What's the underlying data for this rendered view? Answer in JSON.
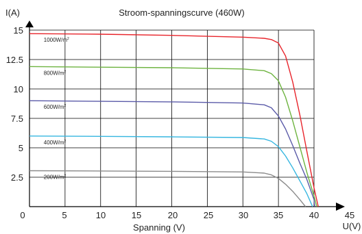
{
  "chart_data": {
    "type": "line",
    "title": "Stroom-spanningscurve (460W)",
    "xlabel": "Spanning (V)",
    "xunit": "U(V)",
    "yunit": "I(A)",
    "xlim": [
      0,
      45
    ],
    "ylim": [
      0,
      15
    ],
    "x_ticks": [
      "0",
      "5",
      "10",
      "15",
      "20",
      "25",
      "30",
      "35",
      "40",
      "45"
    ],
    "y_ticks": [
      "2.5",
      "5",
      "7.5",
      "10",
      "12.5",
      "15"
    ],
    "x_tick_values": [
      0,
      5,
      10,
      15,
      20,
      25,
      30,
      35,
      40,
      45
    ],
    "y_tick_values": [
      2.5,
      5,
      7.5,
      10,
      12.5,
      15
    ],
    "grid": true,
    "series": [
      {
        "name": "1000W/m2",
        "label_main": "1000W/m",
        "label_sup": "2",
        "color": "#e8232a",
        "x": [
          0,
          10,
          20,
          30,
          33,
          34,
          35,
          36,
          37,
          38,
          39,
          40,
          40.6
        ],
        "y": [
          14.7,
          14.65,
          14.55,
          14.4,
          14.3,
          14.2,
          13.9,
          12.8,
          10.6,
          7.8,
          4.7,
          1.6,
          0
        ]
      },
      {
        "name": "800W/m2",
        "label_main": "800W/m",
        "label_sup": "2",
        "color": "#6db33f",
        "x": [
          0,
          10,
          20,
          30,
          33,
          34,
          35,
          36,
          37,
          38,
          39,
          40,
          40.4
        ],
        "y": [
          11.9,
          11.85,
          11.8,
          11.7,
          11.55,
          11.3,
          10.7,
          9.3,
          7.3,
          5.1,
          2.9,
          0.9,
          0
        ]
      },
      {
        "name": "600W/m2",
        "label_main": "600W/m",
        "label_sup": "2",
        "color": "#5a5aa8",
        "x": [
          0,
          10,
          20,
          30,
          33,
          34,
          35,
          36,
          37,
          38,
          39,
          40,
          40.1
        ],
        "y": [
          9.0,
          8.95,
          8.9,
          8.8,
          8.65,
          8.4,
          7.7,
          6.6,
          5.2,
          3.7,
          2.3,
          0.6,
          0
        ]
      },
      {
        "name": "400W/m2",
        "label_main": "400W/m",
        "label_sup": "2",
        "color": "#35b6e0",
        "x": [
          0,
          10,
          20,
          30,
          33,
          34,
          35,
          36,
          37,
          38,
          39,
          39.8
        ],
        "y": [
          6.0,
          5.97,
          5.93,
          5.87,
          5.75,
          5.55,
          5.1,
          4.3,
          3.3,
          2.2,
          1.1,
          0
        ]
      },
      {
        "name": "200W/m2",
        "label_main": "200W/m",
        "label_sup": "2",
        "color": "#8a8a8a",
        "x": [
          0,
          10,
          20,
          30,
          33,
          34,
          35,
          36,
          37,
          38,
          38.8
        ],
        "y": [
          3.05,
          3.03,
          3.0,
          2.95,
          2.85,
          2.7,
          2.4,
          1.9,
          1.3,
          0.6,
          0
        ]
      }
    ]
  }
}
